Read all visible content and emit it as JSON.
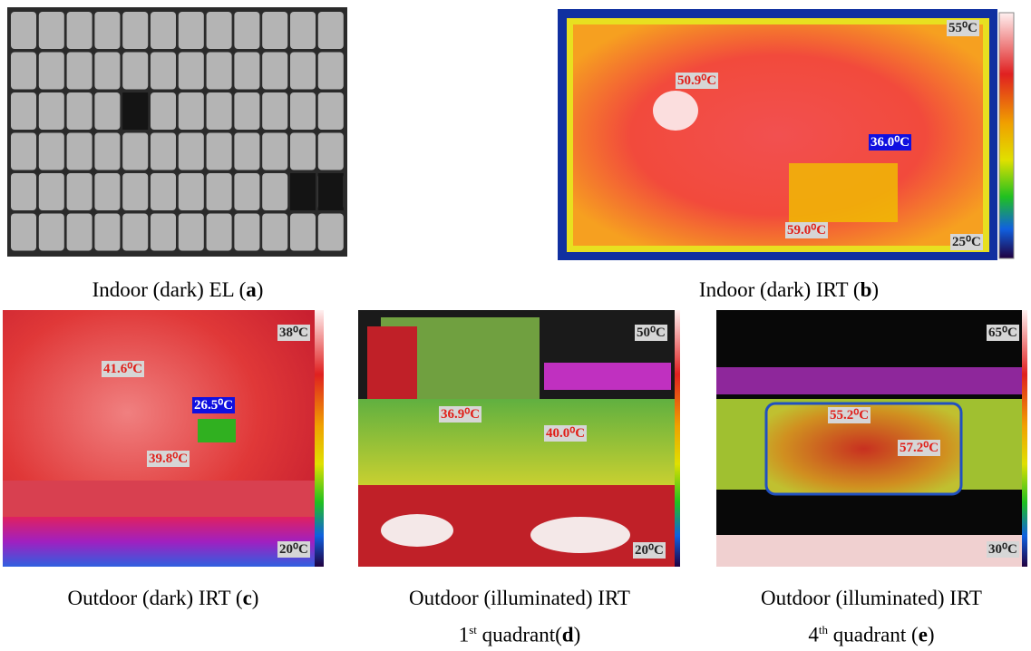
{
  "panels": [
    {
      "caption": [
        [
          {
            "text": "Indoor (dark) EL ("
          },
          {
            "text": "a",
            "bold": true
          },
          {
            "text": ")"
          }
        ]
      ],
      "labels": []
    },
    {
      "caption": [
        [
          {
            "text": "Indoor (dark) IRT ("
          },
          {
            "text": "b",
            "bold": true
          },
          {
            "text": ")"
          }
        ]
      ],
      "labels": [
        "55⁰C",
        "25⁰C",
        "50.9⁰C",
        "36.0⁰C",
        "59.0⁰C"
      ]
    },
    {
      "caption": [
        [
          {
            "text": "Outdoor (dark) IRT ("
          },
          {
            "text": "c",
            "bold": true
          },
          {
            "text": ")"
          }
        ]
      ],
      "labels": [
        "38⁰C",
        "20⁰C",
        "41.6⁰C",
        "26.5⁰C",
        "39.8⁰C"
      ]
    },
    {
      "caption": [
        [
          {
            "text": "Outdoor (illuminated) IRT"
          }
        ],
        [
          {
            "text": "1"
          },
          {
            "text": "st",
            "sup": true
          },
          {
            "text": " quadrant("
          },
          {
            "text": "d",
            "bold": true
          },
          {
            "text": ")"
          }
        ]
      ],
      "labels": [
        "50⁰C",
        "20⁰C",
        "36.9⁰C",
        "40.0⁰C"
      ]
    },
    {
      "caption": [
        [
          {
            "text": "Outdoor (illuminated) IRT"
          }
        ],
        [
          {
            "text": "4"
          },
          {
            "text": "th",
            "sup": true
          },
          {
            "text": " quadrant ("
          },
          {
            "text": "e",
            "bold": true
          },
          {
            "text": ")"
          }
        ]
      ],
      "labels": [
        "65⁰C",
        "30⁰C",
        "55.2⁰C",
        "57.2⁰C"
      ]
    }
  ]
}
